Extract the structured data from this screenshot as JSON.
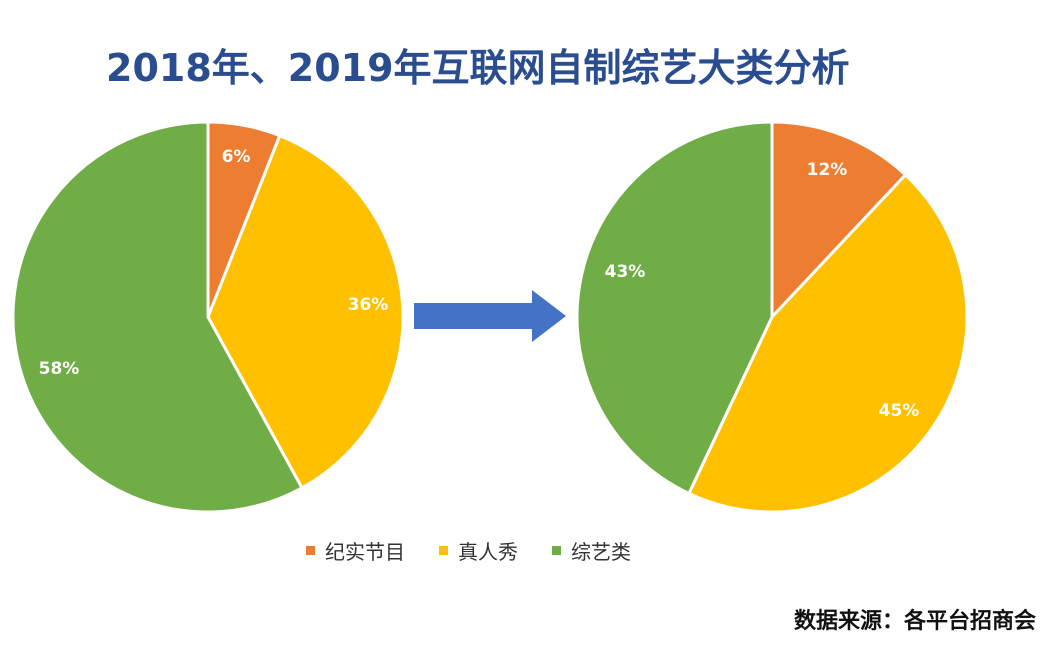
{
  "title": "2018年、2019年互联网自制综艺大类分析",
  "source": "数据来源：各平台招商会",
  "colors": {
    "title": "#2a4d8f",
    "documentary": "#ed7d31",
    "reality": "#ffc000",
    "variety": "#70ad47",
    "arrow": "#4472c4"
  },
  "legend": [
    {
      "label": "纪实节目",
      "color": "#ed7d31"
    },
    {
      "label": "真人秀",
      "color": "#ffc000"
    },
    {
      "label": "综艺类",
      "color": "#70ad47"
    }
  ],
  "chart_data": [
    {
      "type": "pie",
      "categories": [
        "纪实节目",
        "真人秀",
        "综艺类"
      ],
      "values": [
        6,
        36,
        58
      ],
      "labels": [
        "6%",
        "36%",
        "58%"
      ],
      "colors": [
        "#ed7d31",
        "#ffc000",
        "#70ad47"
      ]
    },
    {
      "type": "pie",
      "categories": [
        "纪实节目",
        "真人秀",
        "综艺类"
      ],
      "values": [
        12,
        45,
        43
      ],
      "labels": [
        "12%",
        "45%",
        "43%"
      ],
      "colors": [
        "#ed7d31",
        "#ffc000",
        "#70ad47"
      ]
    }
  ]
}
